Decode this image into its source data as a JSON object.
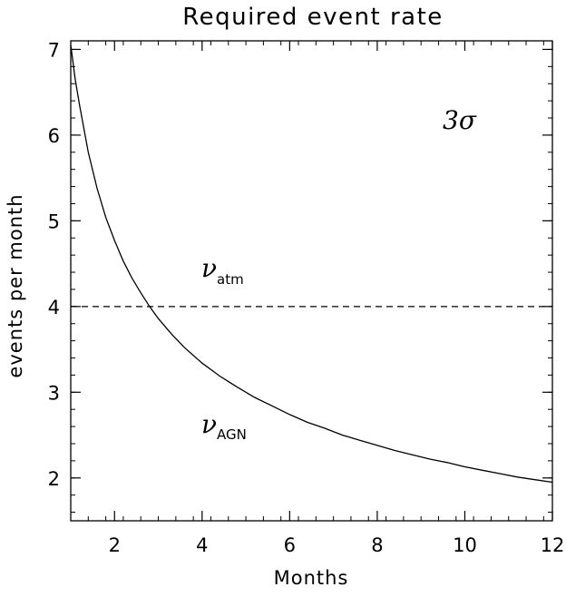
{
  "chart_data": {
    "type": "line",
    "title": "Required event rate",
    "xlabel": "Months",
    "ylabel": "events per month",
    "xlim": [
      1,
      12
    ],
    "ylim": [
      1.5,
      7.1
    ],
    "x_ticks": [
      2,
      4,
      6,
      8,
      10,
      12
    ],
    "y_ticks": [
      2,
      3,
      4,
      5,
      6,
      7
    ],
    "x": [
      1.0,
      1.1,
      1.2,
      1.4,
      1.6,
      1.8,
      2.0,
      2.2,
      2.4,
      2.6,
      2.8,
      3.0,
      3.3,
      3.6,
      4.0,
      4.4,
      4.8,
      5.2,
      5.6,
      6.0,
      6.4,
      6.8,
      7.2,
      7.6,
      8.0,
      8.4,
      8.8,
      9.2,
      9.6,
      10.0,
      10.4,
      10.8,
      11.2,
      11.6,
      12.0
    ],
    "series": [
      {
        "values": [
          7.05,
          6.66,
          6.35,
          5.8,
          5.38,
          5.04,
          4.77,
          4.53,
          4.33,
          4.16,
          4.0,
          3.86,
          3.68,
          3.52,
          3.34,
          3.19,
          3.06,
          2.94,
          2.84,
          2.74,
          2.65,
          2.58,
          2.5,
          2.44,
          2.38,
          2.32,
          2.27,
          2.22,
          2.18,
          2.13,
          2.09,
          2.05,
          2.01,
          1.98,
          1.95
        ],
        "style": "solid"
      }
    ],
    "reference_line": {
      "y": 4.0,
      "style": "dashed"
    },
    "annotations": {
      "significance": "3σ",
      "atm_symbol": "ν",
      "atm_subscript": "atm",
      "agn_symbol": "ν",
      "agn_subscript": "AGN"
    },
    "grid": false,
    "legend": "none"
  }
}
